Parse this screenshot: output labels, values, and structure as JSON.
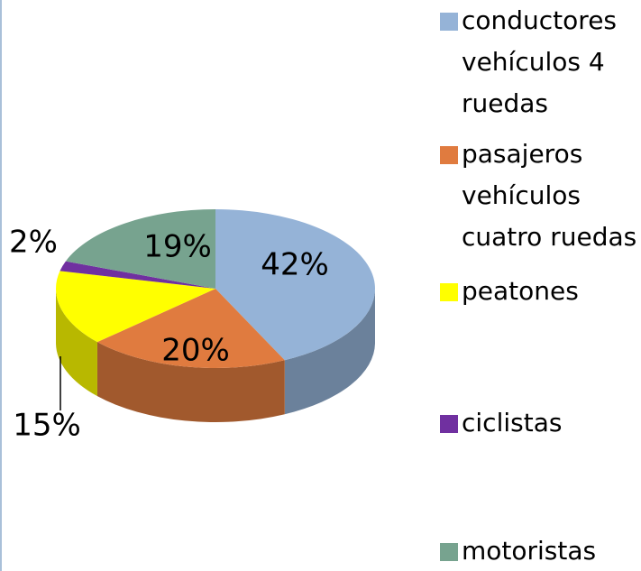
{
  "chart_data": {
    "type": "pie",
    "categories": [
      "conductores vehículos 4 ruedas",
      "pasajeros vehículos cuatro ruedas",
      "peatones",
      "ciclistas",
      "motoristas"
    ],
    "values": [
      42,
      20,
      15,
      2,
      19
    ],
    "value_labels": [
      "42%",
      "20%",
      "15%",
      "2%",
      "19%"
    ],
    "colors": [
      "#95b3d7",
      "#e07b3f",
      "#ffff00",
      "#7030a0",
      "#77a38f"
    ]
  }
}
